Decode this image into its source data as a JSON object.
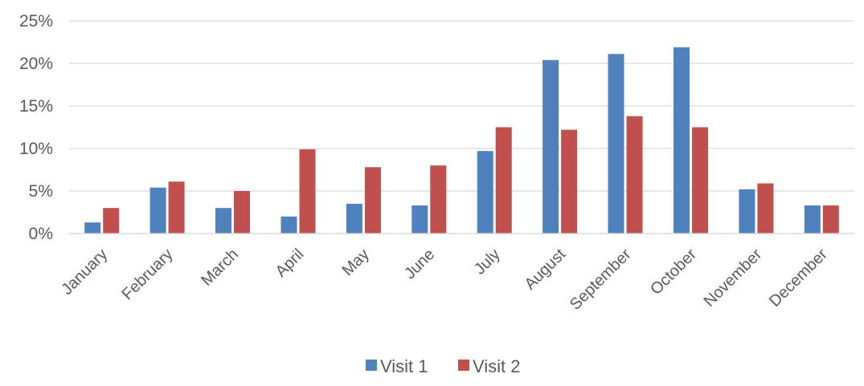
{
  "chart_data": {
    "type": "bar",
    "title": "",
    "xlabel": "",
    "ylabel": "",
    "categories": [
      "January",
      "February",
      "March",
      "April",
      "May",
      "June",
      "July",
      "August",
      "September",
      "October",
      "November",
      "December"
    ],
    "series": [
      {
        "name": "Visit 1",
        "color": "#4F81BD",
        "values": [
          1.3,
          5.4,
          3.0,
          2.0,
          3.5,
          3.3,
          9.7,
          20.4,
          21.1,
          21.9,
          5.2,
          3.3
        ]
      },
      {
        "name": "Visit 2",
        "color": "#C0504D",
        "values": [
          3.0,
          6.1,
          5.0,
          9.9,
          7.8,
          8.0,
          12.5,
          12.2,
          13.8,
          12.5,
          5.9,
          3.3
        ]
      }
    ],
    "ylim": [
      0,
      25
    ],
    "y_ticks": [
      "0%",
      "5%",
      "10%",
      "15%",
      "20%",
      "25%"
    ],
    "y_tick_values": [
      0,
      5,
      10,
      15,
      20,
      25
    ],
    "y_unit": "%",
    "grid": true,
    "legend": "bottom"
  }
}
